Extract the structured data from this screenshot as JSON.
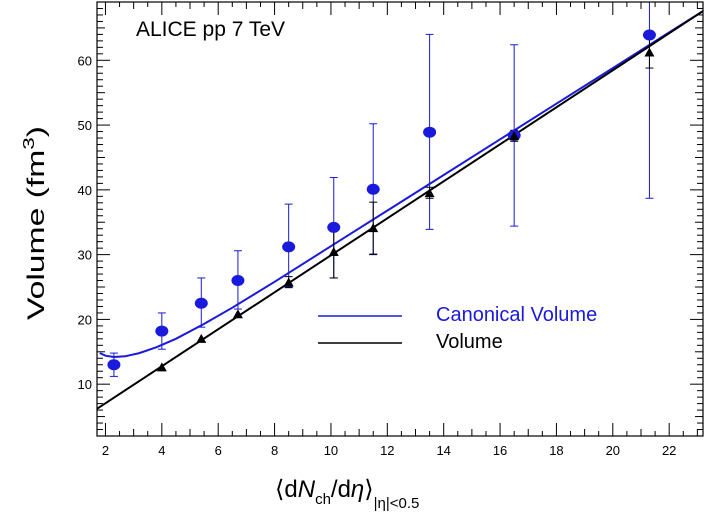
{
  "chart_data": {
    "type": "scatter",
    "annotation": "ALICE pp 7 TeV",
    "ylabel_main": "Volume (fm",
    "ylabel_sup": "3",
    "ylabel_close": ")",
    "xlabel_open": "⟨d",
    "xlabel_N": "N",
    "xlabel_ch": "ch",
    "xlabel_mid": "/d",
    "xlabel_eta": "η",
    "xlabel_close": "⟩",
    "xlabel_sub": "|η|<0.5",
    "xlim": [
      1.7,
      23.2
    ],
    "ylim": [
      2.0,
      69.0
    ],
    "x_ticks": [
      2,
      4,
      6,
      8,
      10,
      12,
      14,
      16,
      18,
      20,
      22
    ],
    "y_ticks": [
      10,
      20,
      30,
      40,
      50,
      60
    ],
    "legend_placement": "center-right",
    "series": [
      {
        "name": "Canonical Volume",
        "color": "#1a1adc",
        "marker": "circle",
        "points": [
          {
            "x": 2.3,
            "y": 13.0,
            "lo": 11.2,
            "hi": 14.8
          },
          {
            "x": 4.0,
            "y": 18.2,
            "lo": 15.4,
            "hi": 21.0
          },
          {
            "x": 5.4,
            "y": 22.5,
            "lo": 18.8,
            "hi": 26.4
          },
          {
            "x": 6.7,
            "y": 26.0,
            "lo": 21.6,
            "hi": 30.6
          },
          {
            "x": 8.5,
            "y": 31.2,
            "lo": 25.0,
            "hi": 37.8
          },
          {
            "x": 10.1,
            "y": 34.2,
            "lo": 26.4,
            "hi": 41.9
          },
          {
            "x": 11.5,
            "y": 40.1,
            "lo": 30.1,
            "hi": 50.2
          },
          {
            "x": 13.5,
            "y": 48.9,
            "lo": 33.9,
            "hi": 64.0
          },
          {
            "x": 16.5,
            "y": 48.4,
            "lo": 34.4,
            "hi": 62.4
          },
          {
            "x": 21.3,
            "y": 63.9,
            "lo": 38.7,
            "hi": 69.0
          }
        ],
        "curve": [
          [
            1.8,
            14.8
          ],
          [
            2.0,
            14.4
          ],
          [
            2.3,
            14.2
          ],
          [
            2.7,
            14.3
          ],
          [
            3.2,
            14.8
          ],
          [
            3.8,
            15.7
          ],
          [
            4.5,
            17.0
          ],
          [
            5.5,
            19.3
          ],
          [
            6.5,
            21.8
          ],
          [
            8.0,
            25.8
          ],
          [
            10.0,
            31.3
          ],
          [
            12.0,
            36.8
          ],
          [
            14.0,
            42.3
          ],
          [
            16.0,
            47.8
          ],
          [
            18.0,
            53.3
          ],
          [
            20.0,
            58.8
          ],
          [
            22.0,
            64.3
          ],
          [
            23.2,
            67.6
          ]
        ]
      },
      {
        "name": "Volume",
        "color": "#000000",
        "marker": "triangle",
        "points": [
          {
            "x": 4.0,
            "y": 12.6
          },
          {
            "x": 5.4,
            "y": 17.0
          },
          {
            "x": 6.7,
            "y": 20.8
          },
          {
            "x": 8.5,
            "y": 25.7,
            "lo": 24.9,
            "hi": 26.6
          },
          {
            "x": 10.1,
            "y": 30.4,
            "lo": 26.4,
            "hi": 34.3
          },
          {
            "x": 11.5,
            "y": 34.1,
            "lo": 30.0,
            "hi": 38.1
          },
          {
            "x": 13.5,
            "y": 39.5,
            "lo": 38.7,
            "hi": 40.4
          },
          {
            "x": 16.5,
            "y": 48.3,
            "lo": 47.5,
            "hi": 49.2
          },
          {
            "x": 21.3,
            "y": 61.2,
            "lo": 58.8,
            "hi": 63.7
          }
        ],
        "curve": [
          [
            1.7,
            6.2
          ],
          [
            23.2,
            67.6
          ]
        ]
      }
    ]
  }
}
